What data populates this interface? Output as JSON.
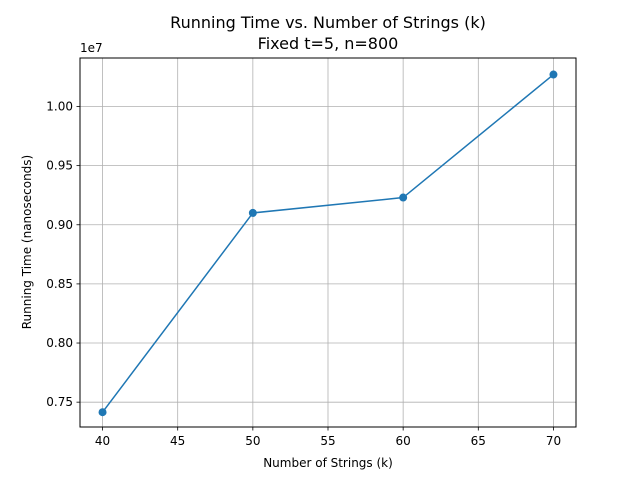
{
  "chart_data": {
    "type": "line",
    "title": "Running Time vs. Number of Strings (k)",
    "subtitle": "Fixed t=5, n=800",
    "xlabel": "Number of Strings (k)",
    "ylabel": "Running Time (nanoseconds)",
    "offset_label": "1e7",
    "x": [
      40,
      50,
      60,
      70
    ],
    "series": [
      {
        "values": [
          7415000,
          9100000,
          9230000,
          10270000
        ]
      }
    ],
    "xlim": [
      38.5,
      71.5
    ],
    "ylim": [
      7290000,
      10410000
    ],
    "xticks": [
      40,
      45,
      50,
      55,
      60,
      65,
      70
    ],
    "xtick_labels": [
      "40",
      "45",
      "50",
      "55",
      "60",
      "65",
      "70"
    ],
    "yticks": [
      7500000,
      8000000,
      8500000,
      9000000,
      9500000,
      10000000
    ],
    "ytick_labels": [
      "0.75",
      "0.80",
      "0.85",
      "0.90",
      "0.95",
      "1.00"
    ],
    "grid": true,
    "color": "#1f77b4",
    "marker": "circle"
  }
}
